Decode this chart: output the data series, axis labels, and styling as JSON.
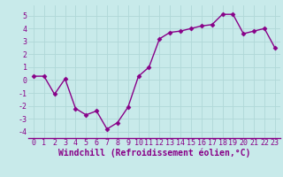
{
  "x": [
    0,
    1,
    2,
    3,
    4,
    5,
    6,
    7,
    8,
    9,
    10,
    11,
    12,
    13,
    14,
    15,
    16,
    17,
    18,
    19,
    20,
    21,
    22,
    23
  ],
  "y": [
    0.3,
    0.3,
    -1.1,
    0.1,
    -2.2,
    -2.7,
    -2.4,
    -3.8,
    -3.3,
    -2.1,
    0.3,
    1.0,
    3.2,
    3.7,
    3.8,
    4.0,
    4.2,
    4.3,
    5.1,
    5.1,
    3.6,
    3.8,
    4.0,
    2.5
  ],
  "line_color": "#880088",
  "marker": "D",
  "marker_size": 2.5,
  "bg_color": "#c8eaea",
  "grid_color": "#b0d8d8",
  "xlabel": "Windchill (Refroidissement éolien,°C)",
  "ylim": [
    -4.5,
    5.8
  ],
  "yticks": [
    -4,
    -3,
    -2,
    -1,
    0,
    1,
    2,
    3,
    4,
    5
  ],
  "xticks": [
    0,
    1,
    2,
    3,
    4,
    5,
    6,
    7,
    8,
    9,
    10,
    11,
    12,
    13,
    14,
    15,
    16,
    17,
    18,
    19,
    20,
    21,
    22,
    23
  ],
  "tick_label_fontsize": 6.0,
  "xlabel_fontsize": 7.0,
  "line_width": 1.0,
  "axis_line_color": "#880088"
}
